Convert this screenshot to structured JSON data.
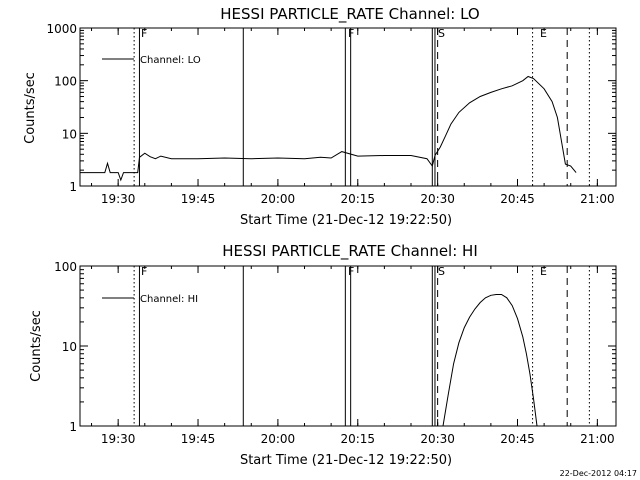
{
  "chart_data": [
    {
      "type": "line",
      "title": "HESSI PARTICLE_RATE Channel: LO",
      "xlabel": "Start Time (21-Dec-12 19:22:50)",
      "ylabel": "Counts/sec",
      "xlim": [
        "19:22:50",
        "21:03:30"
      ],
      "ylim": [
        1,
        1000
      ],
      "yscale": "log",
      "x_ticks": [
        "19:30",
        "19:45",
        "20:00",
        "20:15",
        "20:30",
        "20:45",
        "21:00"
      ],
      "y_ticks": [
        "1",
        "10",
        "100",
        "1000"
      ],
      "legend": {
        "position": "top-left",
        "entries": [
          "Channel: LO"
        ]
      },
      "series": [
        {
          "name": "Channel: LO",
          "x": [
            "19:22:50",
            "19:27:30",
            "19:28:00",
            "19:28:30",
            "19:29:00",
            "19:30:00",
            "19:30:30",
            "19:31:00",
            "19:33:40",
            "19:34:00",
            "19:35:00",
            "19:36:00",
            "19:37:00",
            "19:38:00",
            "19:40:00",
            "19:45:00",
            "19:50:00",
            "19:55:00",
            "20:00:00",
            "20:05:00",
            "20:08:00",
            "20:10:00",
            "20:12:00",
            "20:15:00",
            "20:20:00",
            "20:25:00",
            "20:28:00",
            "20:29:00",
            "20:29:30",
            "20:30:30",
            "20:31:30",
            "20:32:30",
            "20:34:00",
            "20:36:00",
            "20:38:00",
            "20:40:00",
            "20:42:00",
            "20:44:00",
            "20:46:00",
            "20:47:00",
            "20:48:00",
            "20:50:00",
            "20:51:30",
            "20:52:30",
            "20:53:10",
            "20:54:00",
            "20:55:00",
            "20:56:00"
          ],
          "values": [
            1.8,
            1.8,
            2.7,
            1.8,
            1.8,
            1.8,
            1.3,
            1.8,
            1.8,
            3.5,
            4.2,
            3.6,
            3.3,
            3.7,
            3.3,
            3.3,
            3.4,
            3.3,
            3.4,
            3.3,
            3.5,
            3.4,
            4.5,
            3.7,
            3.8,
            3.8,
            3.3,
            2.4,
            3.8,
            5.5,
            9,
            15,
            25,
            38,
            50,
            60,
            70,
            80,
            100,
            120,
            110,
            70,
            40,
            20,
            8,
            2.6,
            2.4,
            1.8
          ]
        }
      ],
      "annotations": [
        "F",
        "F",
        "S",
        "E"
      ]
    },
    {
      "type": "line",
      "title": "HESSI PARTICLE_RATE Channel: HI",
      "xlabel": "Start Time (21-Dec-12 19:22:50)",
      "ylabel": "Counts/sec",
      "xlim": [
        "19:22:50",
        "21:03:30"
      ],
      "ylim": [
        1,
        100
      ],
      "yscale": "log",
      "x_ticks": [
        "19:30",
        "19:45",
        "20:00",
        "20:15",
        "20:30",
        "20:45",
        "21:00"
      ],
      "y_ticks": [
        "1",
        "10",
        "100"
      ],
      "legend": {
        "position": "top-left",
        "entries": [
          "Channel: HI"
        ]
      },
      "series": [
        {
          "name": "Channel: HI",
          "x": [
            "20:31:00",
            "20:32:00",
            "20:33:00",
            "20:34:00",
            "20:35:00",
            "20:36:00",
            "20:37:00",
            "20:38:00",
            "20:39:00",
            "20:40:00",
            "20:41:00",
            "20:42:00",
            "20:43:00",
            "20:44:00",
            "20:45:00",
            "20:46:00",
            "20:46:40",
            "20:47:20",
            "20:48:00",
            "20:48:40"
          ],
          "values": [
            1.0,
            2.5,
            6,
            11,
            17,
            23,
            29,
            35,
            40,
            43,
            44,
            44,
            40,
            32,
            22,
            13,
            8,
            4.5,
            2.2,
            1.0
          ]
        }
      ],
      "annotations": [
        "F",
        "F",
        "S",
        "E"
      ]
    }
  ],
  "event_lines": {
    "solid": [
      "19:34:00",
      "19:53:30",
      "20:12:40",
      "20:13:40",
      "20:29:00",
      "20:29:30"
    ],
    "dashed": [
      "20:30:00",
      "20:54:20"
    ],
    "dotted": [
      "19:33:00",
      "20:47:50",
      "20:58:30"
    ]
  },
  "timestamp": "22-Dec-2012 04:17"
}
